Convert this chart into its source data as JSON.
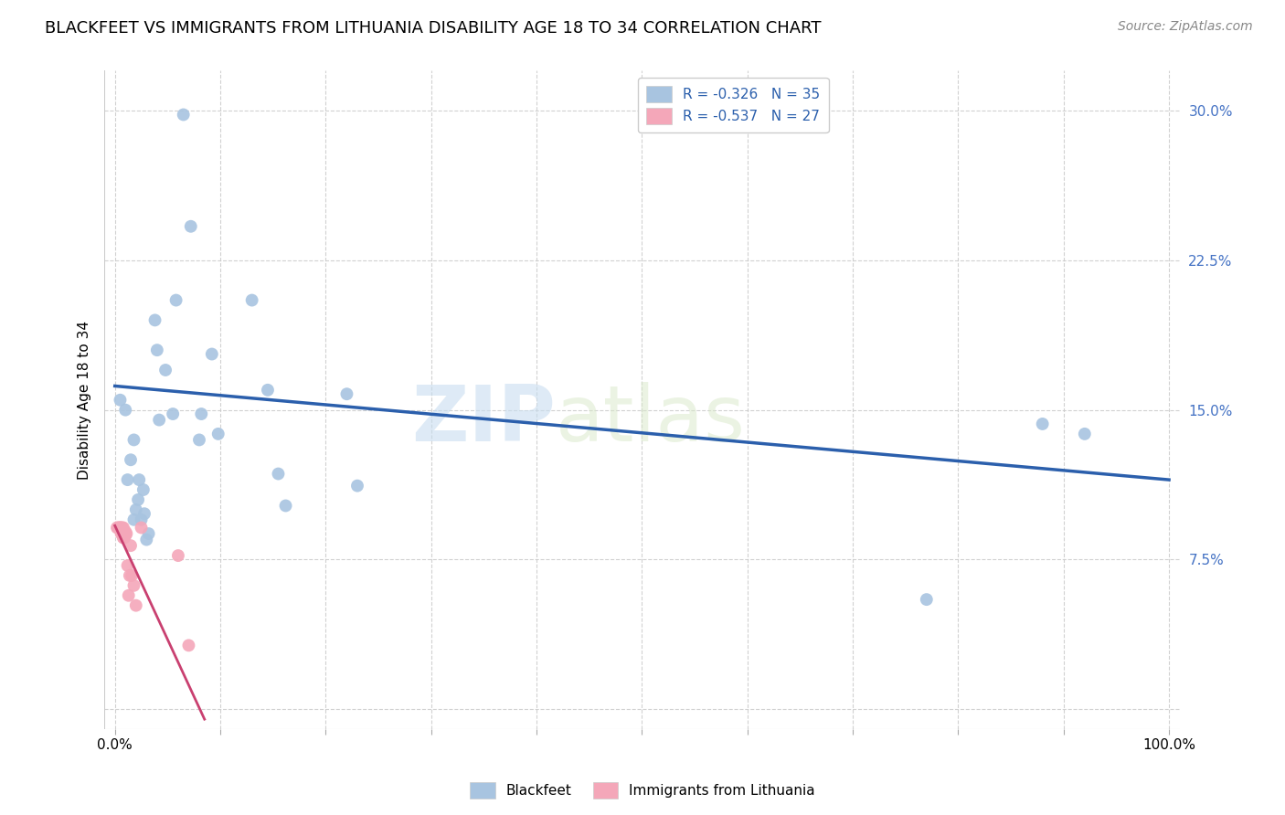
{
  "title": "BLACKFEET VS IMMIGRANTS FROM LITHUANIA DISABILITY AGE 18 TO 34 CORRELATION CHART",
  "source": "Source: ZipAtlas.com",
  "ylabel": "Disability Age 18 to 34",
  "xlim": [
    -0.01,
    1.01
  ],
  "ylim": [
    -0.01,
    0.32
  ],
  "yticks": [
    0.0,
    0.075,
    0.15,
    0.225,
    0.3
  ],
  "ytick_labels": [
    "",
    "7.5%",
    "15.0%",
    "22.5%",
    "30.0%"
  ],
  "xticks": [
    0.0,
    0.1,
    0.2,
    0.3,
    0.4,
    0.5,
    0.6,
    0.7,
    0.8,
    0.9,
    1.0
  ],
  "xtick_labels": [
    "0.0%",
    "",
    "",
    "",
    "",
    "",
    "",
    "",
    "",
    "",
    "100.0%"
  ],
  "watermark_zip": "ZIP",
  "watermark_atlas": "atlas",
  "blue_color": "#a8c4e0",
  "pink_color": "#f4a7b9",
  "blue_line_color": "#2b5fac",
  "pink_line_color": "#c94070",
  "legend_blue_label": "R = -0.326   N = 35",
  "legend_pink_label": "R = -0.537   N = 27",
  "legend_group_label_blue": "Blackfeet",
  "legend_group_label_pink": "Immigrants from Lithuania",
  "blue_scatter_x": [
    0.005,
    0.01,
    0.012,
    0.015,
    0.018,
    0.018,
    0.02,
    0.022,
    0.023,
    0.025,
    0.027,
    0.028,
    0.03,
    0.032,
    0.038,
    0.04,
    0.042,
    0.048,
    0.055,
    0.058,
    0.065,
    0.072,
    0.08,
    0.082,
    0.092,
    0.098,
    0.13,
    0.145,
    0.155,
    0.162,
    0.22,
    0.23,
    0.77,
    0.88,
    0.92
  ],
  "blue_scatter_y": [
    0.155,
    0.15,
    0.115,
    0.125,
    0.135,
    0.095,
    0.1,
    0.105,
    0.115,
    0.095,
    0.11,
    0.098,
    0.085,
    0.088,
    0.195,
    0.18,
    0.145,
    0.17,
    0.148,
    0.205,
    0.298,
    0.242,
    0.135,
    0.148,
    0.178,
    0.138,
    0.205,
    0.16,
    0.118,
    0.102,
    0.158,
    0.112,
    0.055,
    0.143,
    0.138
  ],
  "pink_scatter_x": [
    0.002,
    0.003,
    0.004,
    0.005,
    0.005,
    0.006,
    0.006,
    0.007,
    0.007,
    0.008,
    0.008,
    0.008,
    0.009,
    0.009,
    0.01,
    0.01,
    0.011,
    0.012,
    0.013,
    0.014,
    0.015,
    0.016,
    0.018,
    0.02,
    0.025,
    0.06,
    0.07
  ],
  "pink_scatter_y": [
    0.091,
    0.091,
    0.091,
    0.091,
    0.091,
    0.091,
    0.088,
    0.089,
    0.091,
    0.086,
    0.086,
    0.091,
    0.086,
    0.088,
    0.087,
    0.089,
    0.088,
    0.072,
    0.057,
    0.067,
    0.082,
    0.067,
    0.062,
    0.052,
    0.091,
    0.077,
    0.032
  ],
  "blue_trend_x": [
    0.0,
    1.0
  ],
  "blue_trend_y_start": 0.162,
  "blue_trend_y_end": 0.115,
  "pink_trend_x": [
    0.0,
    0.085
  ],
  "pink_trend_y_start": 0.092,
  "pink_trend_y_end": -0.005,
  "marker_size": 100,
  "title_fontsize": 13,
  "axis_label_fontsize": 11,
  "tick_fontsize": 11,
  "legend_fontsize": 11,
  "source_fontsize": 10
}
